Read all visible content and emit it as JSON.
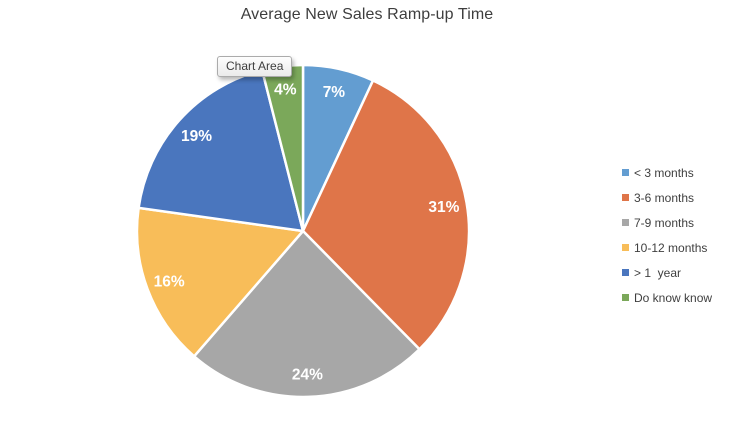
{
  "title": "Average New Sales Ramp-up Time",
  "tooltip": {
    "label": "Chart Area"
  },
  "chart_data": {
    "type": "pie",
    "title": "Average New Sales Ramp-up Time",
    "categories": [
      "< 3 months",
      "3-6 months",
      "7-9 months",
      "10-12 months",
      "> 1  year",
      "Do know know"
    ],
    "values": [
      7,
      31,
      24,
      16,
      19,
      4
    ],
    "labels": [
      "7%",
      "31%",
      "24%",
      "16%",
      "19%",
      "4%"
    ],
    "colors": [
      "#639DD1",
      "#DF7549",
      "#A7A7A7",
      "#F8BD59",
      "#4A76BE",
      "#7BA85A"
    ],
    "label_color": "#FFFFFF",
    "start_angle_deg": 0,
    "direction": "clockwise",
    "legend_position": "right",
    "separator_color": "#FFFFFF"
  }
}
